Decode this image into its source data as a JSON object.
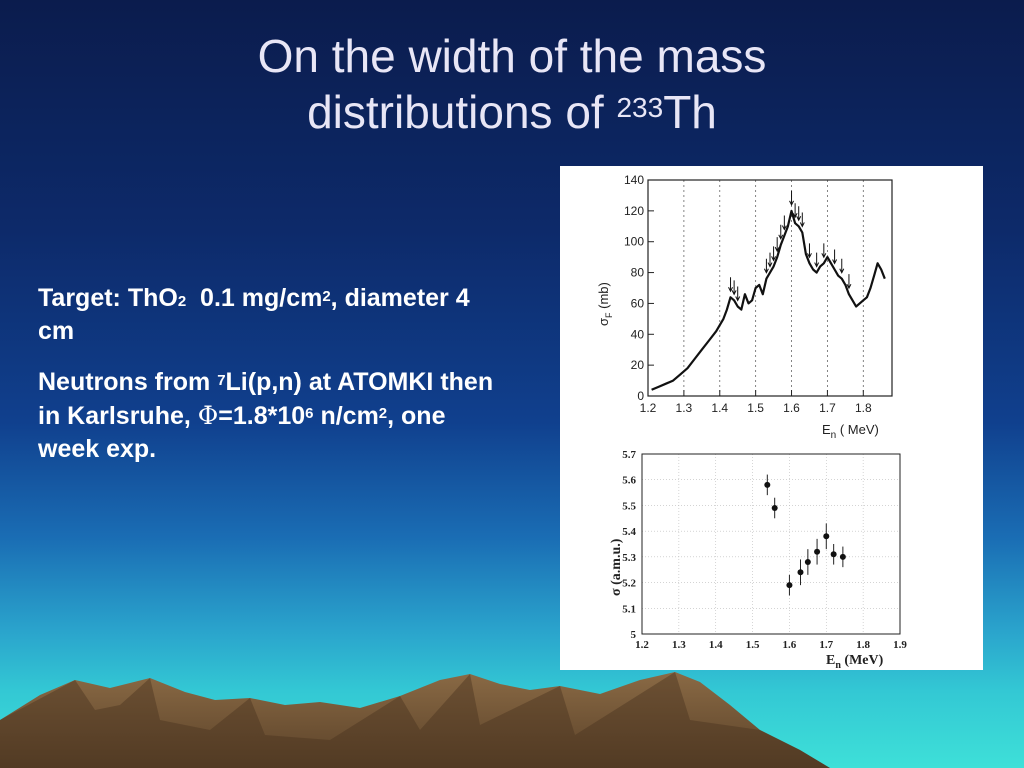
{
  "slide": {
    "title_line1": "On the width of the mass",
    "title_line2_prefix": "distributions of ",
    "title_sup": "233",
    "title_suffix": "Th",
    "body": {
      "p1_a": "Target: ThO",
      "p1_sub": "2",
      "p1_b": "  0.1 mg/cm",
      "p1_sup": "2",
      "p1_c": ", diameter 4 cm",
      "p2_a": "Neutrons from ",
      "p2_sup1": "7",
      "p2_b": "Li(p,n) at ATOMKI then in Karlsruhe, ",
      "p2_phi": "Φ",
      "p2_c": "=1.8*10",
      "p2_sup2": "6",
      "p2_d": " n/cm",
      "p2_sup3": "2",
      "p2_e": ", one week exp."
    }
  },
  "colors": {
    "background_top": "#0b1c4d",
    "background_bottom": "#3ee0d8",
    "title": "#e8e6f6",
    "text": "#ffffff",
    "mountain": "#7a5a3a"
  },
  "chart_data": [
    {
      "type": "line",
      "xlabel_main": "E",
      "xlabel_sub": "n",
      "xlabel_unit": "( MeV)",
      "ylabel_main": "σ",
      "ylabel_sub": "F",
      "ylabel_unit": "(mb)",
      "xlim": [
        1.2,
        1.88
      ],
      "ylim": [
        0,
        140
      ],
      "x_ticks": [
        "1.2",
        "1.3",
        "1.4",
        "1.5",
        "1.6",
        "1.7",
        "1.8"
      ],
      "y_ticks": [
        "0",
        "20",
        "40",
        "60",
        "80",
        "100",
        "120",
        "140"
      ],
      "gridlines_x": [
        1.3,
        1.4,
        1.5,
        1.6,
        1.7,
        1.8
      ],
      "arrow_positions": [
        1.43,
        1.44,
        1.45,
        1.53,
        1.54,
        1.55,
        1.56,
        1.57,
        1.58,
        1.6,
        1.61,
        1.62,
        1.63,
        1.65,
        1.67,
        1.69,
        1.72,
        1.74,
        1.76
      ],
      "series": [
        {
          "x": [
            1.21,
            1.23,
            1.25,
            1.27,
            1.29,
            1.31,
            1.33,
            1.35,
            1.37,
            1.39,
            1.41,
            1.42,
            1.43,
            1.44,
            1.45,
            1.46,
            1.47,
            1.48,
            1.49,
            1.5,
            1.51,
            1.52,
            1.53,
            1.54,
            1.55,
            1.56,
            1.57,
            1.58,
            1.59,
            1.6,
            1.61,
            1.62,
            1.63,
            1.64,
            1.65,
            1.66,
            1.67,
            1.68,
            1.69,
            1.7,
            1.71,
            1.72,
            1.73,
            1.74,
            1.75,
            1.76,
            1.77,
            1.78,
            1.79,
            1.8,
            1.81,
            1.82,
            1.83,
            1.84,
            1.85,
            1.86
          ],
          "values": [
            4,
            6,
            8,
            10,
            14,
            18,
            24,
            30,
            36,
            42,
            50,
            56,
            64,
            62,
            58,
            56,
            66,
            60,
            62,
            70,
            72,
            66,
            76,
            80,
            84,
            90,
            98,
            104,
            110,
            120,
            112,
            110,
            106,
            92,
            86,
            82,
            80,
            84,
            86,
            90,
            86,
            82,
            78,
            76,
            72,
            66,
            62,
            58,
            60,
            62,
            64,
            70,
            78,
            86,
            82,
            76
          ]
        }
      ]
    },
    {
      "type": "scatter",
      "xlabel_main": "E",
      "xlabel_sub": "n",
      "xlabel_unit": " (MeV)",
      "ylabel_main": "σ",
      "ylabel_unit": " (a.m.u.)",
      "xlim": [
        1.2,
        1.9
      ],
      "ylim": [
        5,
        5.7
      ],
      "x_ticks": [
        "1.2",
        "1.3",
        "1.4",
        "1.5",
        "1.6",
        "1.7",
        "1.8",
        "1.9"
      ],
      "y_ticks": [
        "5",
        "5.1",
        "5.2",
        "5.3",
        "5.4",
        "5.5",
        "5.6",
        "5.7"
      ],
      "grid": true,
      "points": [
        {
          "x": 1.54,
          "y": 5.58,
          "err": 0.04
        },
        {
          "x": 1.56,
          "y": 5.49,
          "err": 0.04
        },
        {
          "x": 1.6,
          "y": 5.19,
          "err": 0.04
        },
        {
          "x": 1.63,
          "y": 5.24,
          "err": 0.05
        },
        {
          "x": 1.65,
          "y": 5.28,
          "err": 0.05
        },
        {
          "x": 1.675,
          "y": 5.32,
          "err": 0.05
        },
        {
          "x": 1.7,
          "y": 5.38,
          "err": 0.05
        },
        {
          "x": 1.72,
          "y": 5.31,
          "err": 0.04
        },
        {
          "x": 1.745,
          "y": 5.3,
          "err": 0.04
        }
      ]
    }
  ]
}
